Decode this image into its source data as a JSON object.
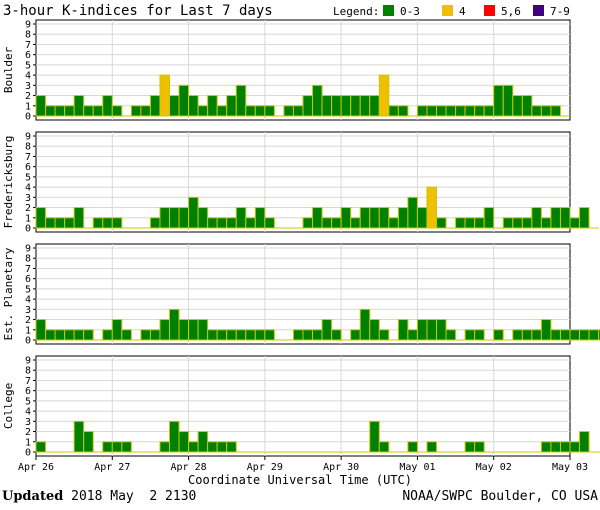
{
  "chart_data": {
    "type": "bar",
    "title": "3-hour K-indices for Last 7 days",
    "legend_title": "Legend:",
    "legend": [
      {
        "label": "0-3",
        "color": "#008000"
      },
      {
        "label": "4",
        "color": "#f0c000"
      },
      {
        "label": "5,6",
        "color": "#ff0000"
      },
      {
        "label": "7-9",
        "color": "#400080"
      }
    ],
    "xlabel": "Coordinate Universal Time (UTC)",
    "x_tick_labels": [
      "Apr 26",
      "Apr 27",
      "Apr 28",
      "Apr 29",
      "Apr 30",
      "May 01",
      "May 02",
      "May 03"
    ],
    "y_ticks": [
      0,
      1,
      2,
      3,
      4,
      5,
      6,
      7,
      8,
      9
    ],
    "ylim": [
      0,
      9
    ],
    "bar_outline_color": "#c8c800",
    "grid": true,
    "series": [
      {
        "name": "Boulder",
        "values": [
          2,
          1,
          1,
          1,
          2,
          1,
          1,
          2,
          1,
          0,
          1,
          1,
          2,
          4,
          2,
          3,
          2,
          1,
          2,
          1,
          2,
          3,
          1,
          1,
          1,
          0,
          1,
          1,
          2,
          3,
          2,
          2,
          2,
          2,
          2,
          2,
          4,
          1,
          1,
          0,
          1,
          1,
          1,
          1,
          1,
          1,
          1,
          1,
          3,
          3,
          2,
          2,
          1,
          1,
          1,
          0
        ]
      },
      {
        "name": "Fredericksburg",
        "values": [
          2,
          1,
          1,
          1,
          2,
          0,
          1,
          1,
          1,
          0,
          0,
          0,
          1,
          2,
          2,
          2,
          3,
          2,
          1,
          1,
          1,
          2,
          1,
          2,
          1,
          0,
          0,
          0,
          1,
          2,
          1,
          1,
          2,
          1,
          2,
          2,
          2,
          1,
          2,
          3,
          2,
          4,
          1,
          0,
          1,
          1,
          1,
          2,
          0,
          1,
          1,
          1,
          2,
          1,
          2,
          2,
          1,
          2,
          0
        ]
      },
      {
        "name": "Est. Planetary",
        "values": [
          2,
          1,
          1,
          1,
          1,
          1,
          0,
          1,
          2,
          1,
          0,
          1,
          1,
          2,
          3,
          2,
          2,
          2,
          1,
          1,
          1,
          1,
          1,
          1,
          1,
          0,
          0,
          1,
          1,
          1,
          2,
          1,
          0,
          1,
          3,
          2,
          1,
          0,
          2,
          1,
          2,
          2,
          2,
          1,
          0,
          1,
          1,
          0,
          1,
          0,
          1,
          1,
          1,
          2,
          1,
          1,
          1,
          1,
          1,
          1
        ]
      },
      {
        "name": "College",
        "values": [
          1,
          0,
          0,
          0,
          3,
          2,
          0,
          1,
          1,
          1,
          0,
          0,
          0,
          1,
          3,
          2,
          1,
          2,
          1,
          1,
          1,
          0,
          0,
          0,
          0,
          0,
          0,
          0,
          0,
          0,
          0,
          0,
          0,
          0,
          0,
          3,
          1,
          0,
          0,
          1,
          0,
          1,
          0,
          0,
          0,
          1,
          1,
          0,
          0,
          0,
          0,
          0,
          0,
          1,
          1,
          1,
          1,
          2,
          0,
          0
        ]
      }
    ]
  },
  "footer": {
    "updated_label": "Updated",
    "updated_value": " 2018 May  2 2130",
    "credit": "NOAA/SWPC Boulder, CO USA"
  }
}
